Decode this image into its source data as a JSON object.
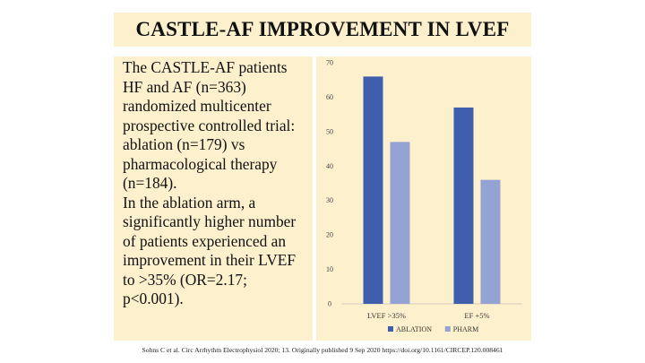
{
  "slide": {
    "title": "CASTLE-AF IMPROVEMENT IN LVEF",
    "body_paragraphs": [
      "The CASTLE-AF patients HF and AF (n=363) randomized multicenter prospective controlled trial: ablation (n=179) vs pharmacological therapy (n=184).",
      "In the ablation arm, a significantly higher number of patients experienced an improvement in their LVEF to >35% (OR=2.17; p<0.001)."
    ],
    "citation": "Sohns C et al. Circ Arrhythm Electrophysiol 2020; 13. Originally published 9 Sep 2020 https://doi.org/10.1161/CIRCEP.120.008461"
  },
  "chart_data": {
    "type": "bar",
    "title": "",
    "xlabel": "",
    "ylabel": "",
    "categories": [
      "LVEF >35%",
      "EF +5%"
    ],
    "series": [
      {
        "name": "ABLATION",
        "values": [
          66,
          57
        ],
        "color": "#3f5fae"
      },
      {
        "name": "PHARM",
        "values": [
          47,
          36
        ],
        "color": "#94a3d3"
      }
    ],
    "ylim": [
      0,
      70
    ],
    "yticks": [
      0,
      10,
      20,
      30,
      40,
      50,
      60,
      70
    ],
    "grid": false,
    "legend": "bottom"
  }
}
